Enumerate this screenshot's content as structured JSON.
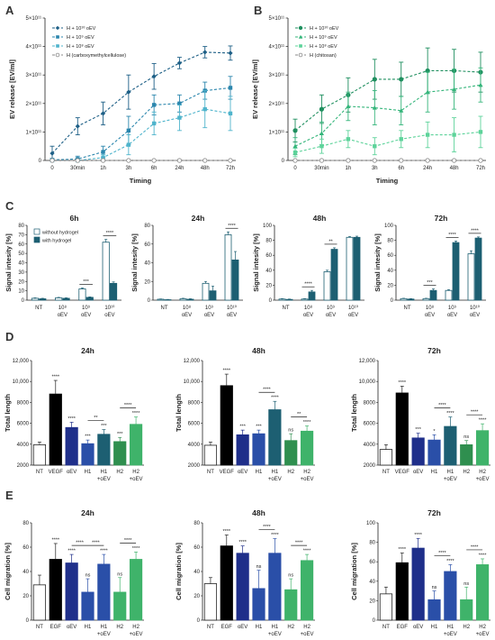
{
  "panels": [
    "A",
    "B",
    "C",
    "D",
    "E"
  ],
  "chart_data": [
    {
      "id": "A",
      "type": "line",
      "x": [
        "0",
        "30min",
        "1h",
        "3h",
        "6h",
        "24h",
        "48h",
        "72h"
      ],
      "xlabel": "Timing",
      "ylabel": "EV release [EV/ml]",
      "yticks": [
        "0",
        "1×10¹¹",
        "2×10¹¹",
        "3×10¹¹",
        "4×10¹¹",
        "5×10¹¹"
      ],
      "ylim": [
        0,
        5
      ],
      "series": [
        {
          "name": "H + 10¹⁰ oEV",
          "color": "#1d5f86",
          "marker": "diamond",
          "values": [
            0.25,
            1.2,
            1.65,
            2.4,
            2.95,
            3.42,
            3.8,
            3.77
          ],
          "err": [
            0.25,
            0.3,
            0.4,
            0.6,
            0.45,
            0.2,
            0.2,
            0.25
          ]
        },
        {
          "name": "H + 10⁹ oEV",
          "color": "#2b86ad",
          "marker": "square",
          "values": [
            0.02,
            0.05,
            0.3,
            1.05,
            1.95,
            2.0,
            2.45,
            2.55
          ],
          "err": [
            0.05,
            0.1,
            0.2,
            0.5,
            0.35,
            0.3,
            0.3,
            0.4
          ]
        },
        {
          "name": "H + 10⁸ oEV",
          "color": "#4fb4cc",
          "marker": "square",
          "values": [
            0.0,
            0.0,
            0.1,
            0.55,
            1.3,
            1.5,
            1.8,
            1.65
          ],
          "err": [
            0.05,
            0.05,
            0.1,
            0.35,
            0.4,
            0.45,
            0.65,
            0.6
          ]
        },
        {
          "name": "H (carboxymethylcellulose)",
          "color": "#888888",
          "marker": "circle",
          "values": [
            0,
            0,
            0,
            0,
            0,
            0,
            0,
            0
          ],
          "err": [
            0,
            0,
            0,
            0,
            0,
            0,
            0,
            0
          ]
        }
      ]
    },
    {
      "id": "B",
      "type": "line",
      "x": [
        "0",
        "30min",
        "1h",
        "3h",
        "6h",
        "24h",
        "48h",
        "72h"
      ],
      "xlabel": "Timing",
      "ylabel": "EV release [EV/ml]",
      "yticks": [
        "0",
        "1×10¹¹",
        "2×10¹¹",
        "3×10¹¹",
        "4×10¹¹",
        "5×10¹¹"
      ],
      "ylim": [
        0,
        5
      ],
      "series": [
        {
          "name": "H + 10¹⁰ oEV",
          "color": "#1f8f5f",
          "marker": "circle",
          "values": [
            1.05,
            1.8,
            2.3,
            2.85,
            2.85,
            3.15,
            3.15,
            3.1
          ],
          "err": [
            0.4,
            0.5,
            0.6,
            0.7,
            0.6,
            0.8,
            0.75,
            0.7
          ]
        },
        {
          "name": "H + 10⁹ oEV",
          "color": "#34b57a",
          "marker": "triangle",
          "values": [
            0.5,
            0.95,
            1.9,
            1.85,
            1.75,
            2.4,
            2.5,
            2.65
          ],
          "err": [
            0.3,
            0.4,
            0.5,
            0.6,
            0.5,
            0.7,
            0.7,
            0.6
          ]
        },
        {
          "name": "H + 10⁸ oEV",
          "color": "#5dd39a",
          "marker": "square",
          "values": [
            0.28,
            0.5,
            0.75,
            0.5,
            0.75,
            0.9,
            0.9,
            1.0
          ],
          "err": [
            0.15,
            0.25,
            0.3,
            0.3,
            0.3,
            0.45,
            0.6,
            0.55
          ]
        },
        {
          "name": "H (chitosan)",
          "color": "#888888",
          "marker": "circle",
          "values": [
            0,
            0,
            0,
            0,
            0,
            0,
            0,
            0
          ],
          "err": [
            0,
            0,
            0,
            0,
            0,
            0,
            0,
            0
          ]
        }
      ]
    },
    {
      "id": "C",
      "type": "bar",
      "ylabel": "Signal intesity [%]",
      "legend": [
        "without hydrogel",
        "with hydrogel"
      ],
      "colors": [
        "#ffffff",
        "#1d5f72"
      ],
      "categories": [
        [
          "NT",
          ""
        ],
        [
          "10⁸",
          "oEV"
        ],
        [
          "10⁹",
          "oEV"
        ],
        [
          "10¹⁰",
          "oEV"
        ]
      ],
      "subplots": [
        {
          "title": "6h",
          "ylim": [
            0,
            80
          ],
          "yticks": [
            0,
            10,
            20,
            30,
            40,
            50,
            60,
            70,
            80
          ],
          "a": [
            2,
            2.5,
            12,
            62
          ],
          "b": [
            1.5,
            2,
            3,
            18
          ],
          "ea": [
            0.5,
            0.5,
            1,
            3
          ],
          "eb": [
            0.5,
            0.5,
            0.5,
            1.5
          ],
          "sig": [
            {
              "i": 2,
              "t": "***"
            },
            {
              "i": 3,
              "t": "****"
            }
          ]
        },
        {
          "title": "24h",
          "ylim": [
            0,
            80
          ],
          "yticks": [
            0,
            20,
            40,
            60,
            80
          ],
          "a": [
            1,
            1.5,
            18,
            70
          ],
          "b": [
            0.5,
            1,
            10,
            43
          ],
          "ea": [
            0.3,
            0.5,
            2,
            3
          ],
          "eb": [
            0.3,
            0.5,
            5,
            9
          ],
          "sig": [
            {
              "i": 3,
              "t": "****"
            }
          ]
        },
        {
          "title": "48h",
          "ylim": [
            0,
            100
          ],
          "yticks": [
            0,
            20,
            40,
            60,
            80,
            100
          ],
          "a": [
            1.5,
            1.5,
            38,
            84
          ],
          "b": [
            1,
            11,
            68,
            84
          ],
          "ea": [
            0.5,
            0.5,
            2,
            1
          ],
          "eb": [
            0.5,
            2,
            2,
            1.5
          ],
          "sig": [
            {
              "i": 1,
              "t": "****"
            },
            {
              "i": 2,
              "t": "**"
            }
          ]
        },
        {
          "title": "72h",
          "ylim": [
            0,
            100
          ],
          "yticks": [
            0,
            20,
            40,
            60,
            80,
            100
          ],
          "a": [
            2,
            2,
            13,
            62
          ],
          "b": [
            1.5,
            13,
            77,
            83
          ],
          "ea": [
            0.5,
            0.5,
            1,
            4
          ],
          "eb": [
            0.5,
            2,
            2,
            1.5
          ],
          "sig": [
            {
              "i": 1,
              "t": "***"
            },
            {
              "i": 2,
              "t": "****"
            },
            {
              "i": 3,
              "t": "****"
            }
          ]
        }
      ]
    },
    {
      "id": "D",
      "type": "bar",
      "ylabel": "Total length",
      "categories": [
        [
          "NT",
          ""
        ],
        [
          "VEGF",
          ""
        ],
        [
          "oEV",
          ""
        ],
        [
          "H1",
          ""
        ],
        [
          "H1",
          "+oEV"
        ],
        [
          "H2",
          ""
        ],
        [
          "H2",
          "+oEV"
        ]
      ],
      "colors": [
        "#ffffff",
        "#000000",
        "#1f2f8a",
        "#2a4fa8",
        "#1d5f72",
        "#2f8f4f",
        "#3fb36a"
      ],
      "ylim": [
        2000,
        12000
      ],
      "yticks": [
        "2000",
        "4000",
        "6000",
        "8000",
        "10,000",
        "12,000"
      ],
      "subplots": [
        {
          "title": "24h",
          "values": [
            3950,
            8800,
            5600,
            4050,
            4950,
            4250,
            5900
          ],
          "err": [
            250,
            1300,
            500,
            350,
            450,
            400,
            700
          ],
          "stars": [
            "",
            "****",
            "****",
            "***",
            "***",
            "***",
            "****"
          ],
          "br": [
            {
              "a": 3,
              "b": 4,
              "t": "**"
            },
            {
              "a": 5,
              "b": 6,
              "t": "****"
            }
          ]
        },
        {
          "title": "48h",
          "values": [
            3900,
            9600,
            4900,
            5000,
            7300,
            4350,
            5250
          ],
          "err": [
            300,
            1100,
            450,
            350,
            800,
            650,
            500
          ],
          "stars": [
            "",
            "****",
            "***",
            "***",
            "****",
            "ns",
            "****"
          ],
          "br": [
            {
              "a": 3,
              "b": 4,
              "t": "****"
            },
            {
              "a": 5,
              "b": 6,
              "t": "**"
            }
          ]
        },
        {
          "title": "72h",
          "values": [
            3500,
            8900,
            4600,
            4400,
            5700,
            3950,
            5300
          ],
          "err": [
            450,
            650,
            450,
            500,
            900,
            400,
            650
          ],
          "stars": [
            "",
            "****",
            "***",
            "*",
            "****",
            "ns",
            "****"
          ],
          "br": [
            {
              "a": 3,
              "b": 4,
              "t": "****"
            },
            {
              "a": 5,
              "b": 6,
              "t": "****"
            }
          ]
        }
      ]
    },
    {
      "id": "E",
      "type": "bar",
      "ylabel": "Cell migration [%]",
      "categories": [
        [
          "NT",
          ""
        ],
        [
          "EGF",
          ""
        ],
        [
          "oEV",
          ""
        ],
        [
          "H1",
          ""
        ],
        [
          "H1",
          "+oEV"
        ],
        [
          "H2",
          ""
        ],
        [
          "H2",
          "+oEV"
        ]
      ],
      "colors": [
        "#ffffff",
        "#000000",
        "#1f2f8a",
        "#2a4fa8",
        "#2a4fa8",
        "#3fb36a",
        "#3fb36a"
      ],
      "ylim": [
        0,
        80
      ],
      "yticks": [
        "0",
        "20",
        "40",
        "60",
        "80"
      ],
      "subplots": [
        {
          "title": "24h",
          "ylim": [
            0,
            80
          ],
          "yticks": [
            "0",
            "20",
            "40",
            "60",
            "80"
          ],
          "values": [
            29,
            50,
            47,
            23,
            46,
            23,
            50
          ],
          "err": [
            8,
            13,
            7,
            11,
            8,
            12,
            6
          ],
          "stars": [
            "",
            "****",
            "****",
            "ns",
            "****",
            "ns",
            "****"
          ],
          "br": [
            {
              "a": 2,
              "b": 3,
              "t": "****"
            },
            {
              "a": 3,
              "b": 4,
              "t": "****"
            },
            {
              "a": 5,
              "b": 6,
              "t": "****"
            }
          ]
        },
        {
          "title": "48h",
          "ylim": [
            0,
            80
          ],
          "yticks": [
            "0",
            "20",
            "40",
            "60",
            "80"
          ],
          "values": [
            30,
            61,
            55,
            26,
            55,
            25,
            49
          ],
          "err": [
            5,
            9,
            6,
            15,
            12,
            9,
            5
          ],
          "stars": [
            "",
            "****",
            "****",
            "ns",
            "****",
            "ns",
            "****"
          ],
          "br": [
            {
              "a": 3,
              "b": 4,
              "t": "****"
            },
            {
              "a": 5,
              "b": 6,
              "t": "****"
            }
          ]
        },
        {
          "title": "72h",
          "ylim": [
            0,
            100
          ],
          "yticks": [
            "0",
            "20",
            "40",
            "60",
            "80",
            "100"
          ],
          "values": [
            27,
            59,
            74,
            21,
            50,
            21,
            57
          ],
          "err": [
            7,
            10,
            10,
            9,
            7,
            13,
            6
          ],
          "stars": [
            "",
            "****",
            "****",
            "ns",
            "****",
            "ns",
            "****"
          ],
          "br": [
            {
              "a": 3,
              "b": 4,
              "t": "****"
            },
            {
              "a": 5,
              "b": 6,
              "t": "****"
            }
          ]
        }
      ]
    }
  ]
}
